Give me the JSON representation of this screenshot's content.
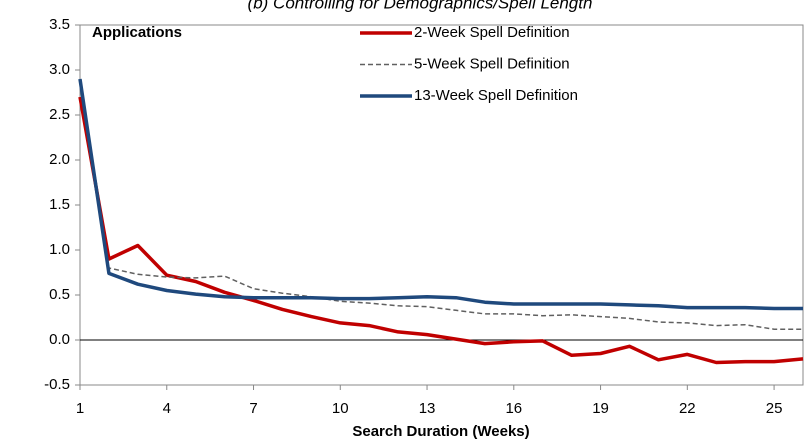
{
  "chart_data": {
    "type": "line",
    "title": "(b) Controlling for Demographics/Spell Length",
    "annotation": "Applications",
    "x_label": "Search Duration (Weeks)",
    "x": [
      1,
      2,
      3,
      4,
      5,
      6,
      7,
      8,
      9,
      10,
      11,
      12,
      13,
      14,
      15,
      16,
      17,
      18,
      19,
      20,
      21,
      22,
      23,
      24,
      25,
      26
    ],
    "series": [
      {
        "name": "2-Week Spell Definition",
        "color": "#c00000",
        "linestyle": "solid",
        "values": [
          2.7,
          0.9,
          1.05,
          0.72,
          0.65,
          0.53,
          0.44,
          0.34,
          0.26,
          0.19,
          0.16,
          0.09,
          0.06,
          0.01,
          -0.04,
          -0.02,
          -0.01,
          -0.17,
          -0.15,
          -0.07,
          -0.22,
          -0.16,
          -0.25,
          -0.24,
          -0.24,
          -0.21
        ]
      },
      {
        "name": "5-Week Spell Definition",
        "color": "#606060",
        "linestyle": "dashed",
        "values": [
          2.85,
          0.8,
          0.73,
          0.7,
          0.69,
          0.71,
          0.57,
          0.52,
          0.48,
          0.43,
          0.41,
          0.38,
          0.37,
          0.33,
          0.29,
          0.29,
          0.27,
          0.28,
          0.26,
          0.24,
          0.2,
          0.19,
          0.16,
          0.17,
          0.12,
          0.12
        ]
      },
      {
        "name": "13-Week Spell Definition",
        "color": "#1f497d",
        "linestyle": "solid",
        "values": [
          2.9,
          0.74,
          0.62,
          0.55,
          0.51,
          0.48,
          0.47,
          0.47,
          0.47,
          0.46,
          0.46,
          0.47,
          0.48,
          0.47,
          0.42,
          0.4,
          0.4,
          0.4,
          0.4,
          0.39,
          0.38,
          0.36,
          0.36,
          0.36,
          0.35,
          0.35
        ]
      }
    ],
    "xlim": [
      1,
      26
    ],
    "xticks": [
      1,
      4,
      7,
      10,
      13,
      16,
      19,
      22,
      25
    ],
    "ylim": [
      -0.5,
      3.5
    ],
    "yticks": [
      -0.5,
      {
        "value": 0,
        "label": "0.0"
      },
      0.5,
      {
        "value": 1,
        "label": "1.0"
      },
      1.5,
      {
        "value": 2,
        "label": "2.0"
      },
      2.5,
      {
        "value": 3,
        "label": "3.0"
      },
      3.5
    ]
  }
}
